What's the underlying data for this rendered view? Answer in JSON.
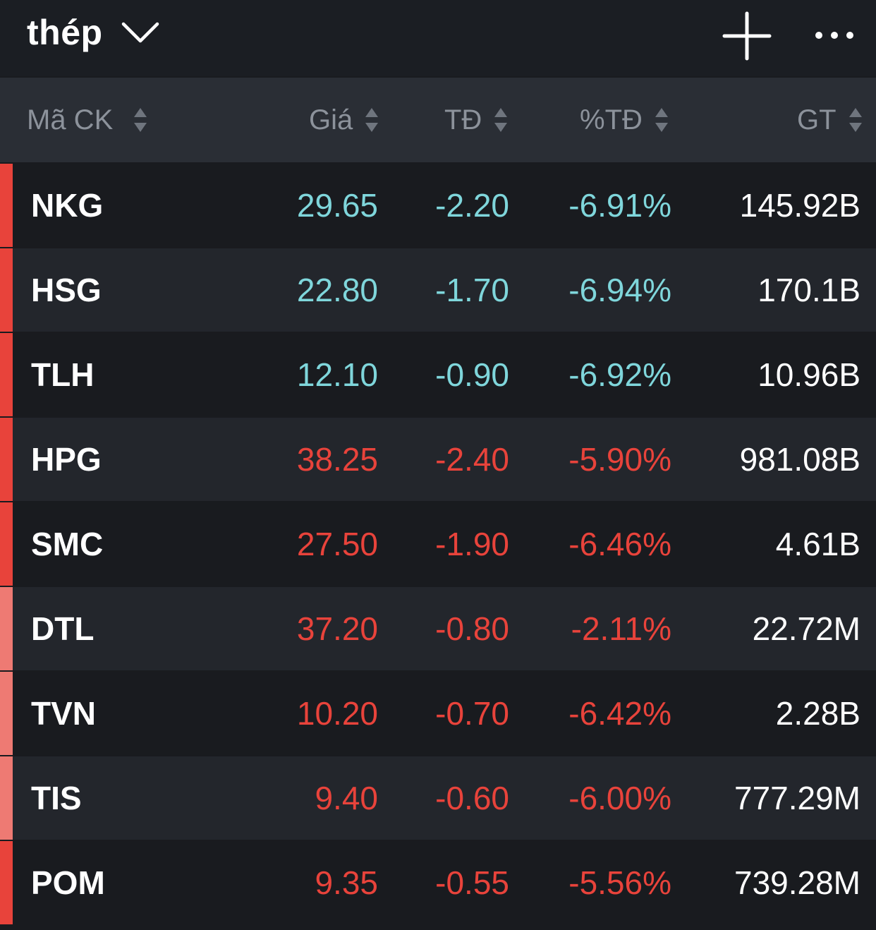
{
  "header": {
    "title": "thép",
    "title_icon": "chevron-down-icon",
    "add_icon": "plus-icon",
    "more_icon": "more-horizontal-icon"
  },
  "columns": {
    "symbol": "Mã CK",
    "price": "Giá",
    "change": "TĐ",
    "percent": "%TĐ",
    "value": "GT"
  },
  "colors": {
    "floor": "#7fd6db",
    "down": "#e8433b",
    "text": "#ffffff",
    "indicator_strong": "#e8433b",
    "indicator_light": "#ee7a73"
  },
  "rows": [
    {
      "symbol": "NKG",
      "price": "29.65",
      "change": "-2.20",
      "percent": "-6.91%",
      "value": "145.92B",
      "status": "floor",
      "indicator": "strong"
    },
    {
      "symbol": "HSG",
      "price": "22.80",
      "change": "-1.70",
      "percent": "-6.94%",
      "value": "170.1B",
      "status": "floor",
      "indicator": "strong"
    },
    {
      "symbol": "TLH",
      "price": "12.10",
      "change": "-0.90",
      "percent": "-6.92%",
      "value": "10.96B",
      "status": "floor",
      "indicator": "strong"
    },
    {
      "symbol": "HPG",
      "price": "38.25",
      "change": "-2.40",
      "percent": "-5.90%",
      "value": "981.08B",
      "status": "down",
      "indicator": "strong"
    },
    {
      "symbol": "SMC",
      "price": "27.50",
      "change": "-1.90",
      "percent": "-6.46%",
      "value": "4.61B",
      "status": "down",
      "indicator": "strong"
    },
    {
      "symbol": "DTL",
      "price": "37.20",
      "change": "-0.80",
      "percent": "-2.11%",
      "value": "22.72M",
      "status": "down",
      "indicator": "light"
    },
    {
      "symbol": "TVN",
      "price": "10.20",
      "change": "-0.70",
      "percent": "-6.42%",
      "value": "2.28B",
      "status": "down",
      "indicator": "light"
    },
    {
      "symbol": "TIS",
      "price": "9.40",
      "change": "-0.60",
      "percent": "-6.00%",
      "value": "777.29M",
      "status": "down",
      "indicator": "light"
    },
    {
      "symbol": "POM",
      "price": "9.35",
      "change": "-0.55",
      "percent": "-5.56%",
      "value": "739.28M",
      "status": "down",
      "indicator": "strong"
    }
  ]
}
